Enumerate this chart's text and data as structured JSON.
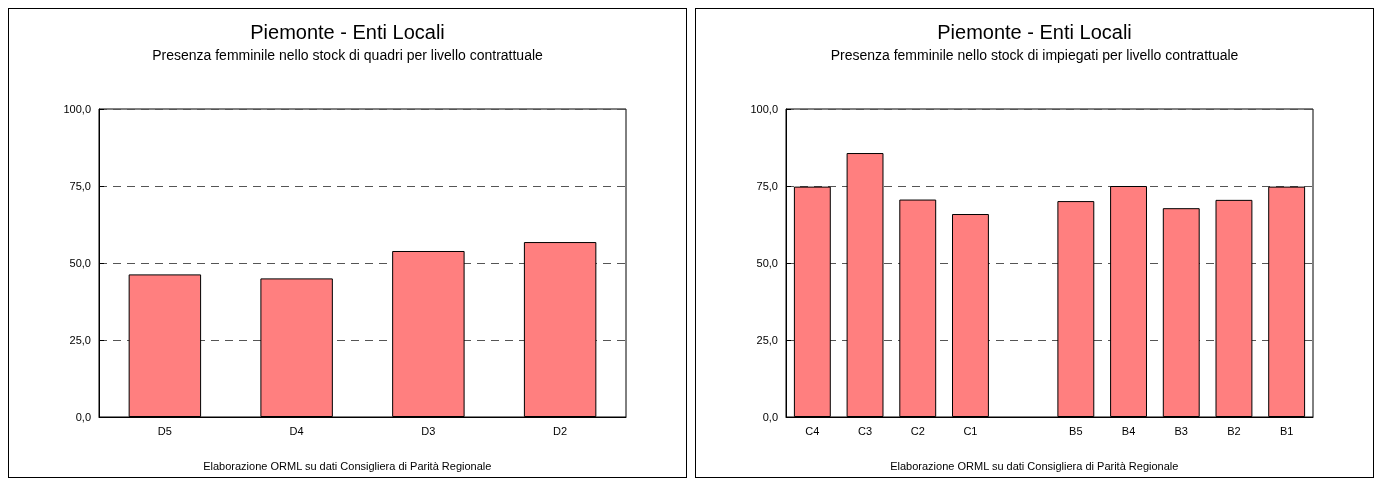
{
  "chart_data": [
    {
      "type": "bar",
      "title": "Piemonte - Enti Locali",
      "subtitle": "Presenza femminile nello stock di quadri per livello contrattuale",
      "categories": [
        "D5",
        "D4",
        "D3",
        "D2"
      ],
      "series": [
        {
          "color": "#ff7f7f",
          "values": [
            46.3,
            45.0,
            53.9,
            56.8
          ]
        }
      ],
      "ylim": [
        0,
        100
      ],
      "yticks": [
        {
          "value": 0,
          "label": "0,0"
        },
        {
          "value": 25,
          "label": "25,0"
        },
        {
          "value": 50,
          "label": "50,0"
        },
        {
          "value": 75,
          "label": "75,0"
        },
        {
          "value": 100,
          "label": "100,0"
        }
      ],
      "grid": "y",
      "annotations": [
        "Elaborazione ORML su dati Consigliera di Parità Regionale"
      ]
    },
    {
      "type": "bar",
      "title": "Piemonte - Enti Locali",
      "subtitle": "Presenza femminile nello stock di impiegati per livello contrattuale",
      "categories": [
        "C4",
        "C3",
        "C2",
        "C1",
        null,
        "B5",
        "B4",
        "B3",
        "B2",
        "B1"
      ],
      "series": [
        {
          "color": "#ff7f7f",
          "values": [
            74.8,
            85.7,
            70.6,
            65.9,
            null,
            70.1,
            75.0,
            67.8,
            70.5,
            74.8
          ]
        }
      ],
      "ylim": [
        0,
        100
      ],
      "yticks": [
        {
          "value": 0,
          "label": "0,0"
        },
        {
          "value": 25,
          "label": "25,0"
        },
        {
          "value": 50,
          "label": "50,0"
        },
        {
          "value": 75,
          "label": "75,0"
        },
        {
          "value": 100,
          "label": "100,0"
        }
      ],
      "grid": "y",
      "annotations": [
        "Elaborazione ORML su dati Consigliera di Parità Regionale"
      ]
    }
  ]
}
